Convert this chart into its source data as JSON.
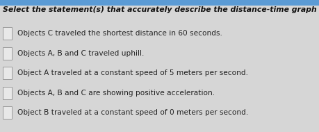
{
  "title": "Select the statement(s) that accurately describe the distance-time graph shown.",
  "options": [
    "Objects C traveled the shortest distance in 60 seconds.",
    "Objects A, B and C traveled uphill.",
    "Object A traveled at a constant speed of 5 meters per second.",
    "Objects A, B and C are showing positive acceleration.",
    "Object B traveled at a constant speed of 0 meters per second."
  ],
  "bg_color": "#d6d6d6",
  "content_bg": "#f0f0f0",
  "title_color": "#111111",
  "option_color": "#222222",
  "checkbox_edge_color": "#999999",
  "checkbox_fill_color": "#e8e8e8",
  "top_bar_color": "#5b9bd5",
  "title_fontsize": 7.8,
  "option_fontsize": 7.6,
  "top_bar_height": 0.04
}
